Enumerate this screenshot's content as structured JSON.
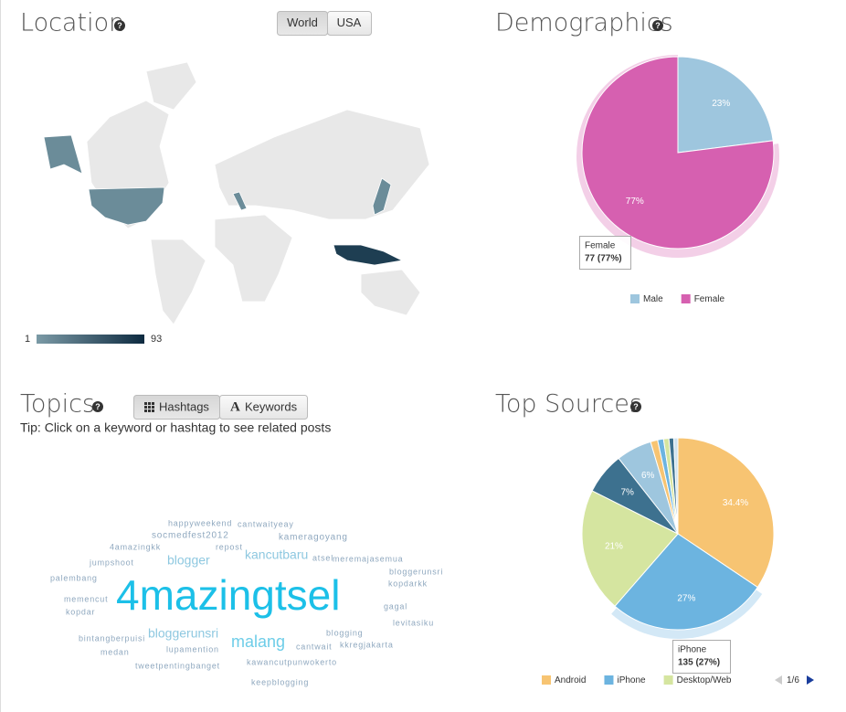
{
  "help_icon": "?",
  "location": {
    "title": "Location",
    "buttons": [
      "World",
      "USA"
    ],
    "scale": {
      "min": 1,
      "max": 93
    }
  },
  "demographics": {
    "title": "Demographics",
    "chart": {
      "type": "pie",
      "categories": [
        "Male",
        "Female"
      ],
      "values": [
        23,
        77
      ],
      "value_labels": [
        "23%",
        "77%"
      ],
      "colors": [
        "#9ec6de",
        "#d660b0"
      ]
    },
    "tooltip": {
      "title": "Female",
      "text": "77 (77%)"
    }
  },
  "topics": {
    "title": "Topics",
    "buttons": [
      "Hashtags",
      "Keywords"
    ],
    "keyword_icon": "A",
    "tip": "Tip: Click on a keyword or hashtag to see related posts",
    "words": [
      "happyweekend",
      "cantwaityeay",
      "socmedfest2012",
      "kameragoyang",
      "4amazingkk",
      "repost",
      "jumpshoot",
      "blogger",
      "kancutbaru",
      "atsel",
      "meremajasemua",
      "bloggerunsri",
      "palembang",
      "kopdarkk",
      "4mazingtsel",
      "memencut",
      "kopdar",
      "gagal",
      "levitasiku",
      "bintangberpuisi",
      "bloggerunsri",
      "blogging",
      "malang",
      "cantwait",
      "kkregjakarta",
      "medan",
      "lupamention",
      "tweetpentingbanget",
      "kawancutpunwokerto",
      "keepblogging"
    ]
  },
  "top_sources": {
    "title": "Top Sources",
    "chart": {
      "type": "pie",
      "categories": [
        "Android",
        "iPhone",
        "Desktop/Web",
        null,
        null,
        null,
        null,
        null,
        null,
        null
      ],
      "values": [
        34.4,
        27,
        21,
        7,
        6,
        1.2,
        1.0,
        0.9,
        0.8,
        0.7
      ],
      "value_labels": [
        "34.4%",
        "27%",
        "21%",
        "7%",
        "6%",
        null,
        null,
        null,
        null,
        null
      ],
      "colors": [
        "#f7c472",
        "#6cb4e0",
        "#d5e5a0",
        "#3d718f",
        "#9ec6de",
        "#f7c472",
        "#6cb4e0",
        "#d5e5a0",
        "#3d718f",
        "#cfe3ef"
      ]
    },
    "tooltip": {
      "title": "iPhone",
      "text": "135 (27%)"
    },
    "pager": "1/6"
  }
}
